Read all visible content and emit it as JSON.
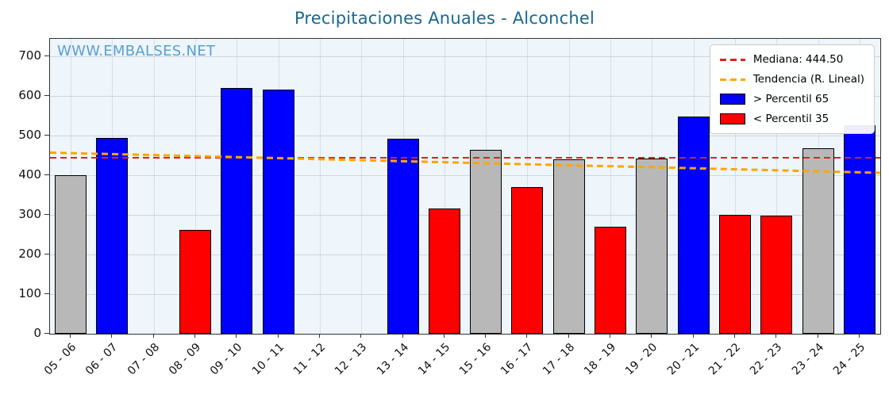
{
  "title": "Precipitaciones Anuales - Alconchel",
  "watermark": "WWW.EMBALSES.NET",
  "legend": {
    "median_label": "Mediana: 444.50",
    "trend_label": "Tendencia (R. Lineal)",
    "high_label": "> Percentil 65",
    "low_label": "< Percentil 35"
  },
  "colors": {
    "high": "#0000ff",
    "low": "#ff0000",
    "normal": "#b8b8b8",
    "median_line": "#dd2222",
    "trend_line": "#ffa500",
    "title": "#186890",
    "watermark": "#4f9bd0",
    "plot_bg": "#eef5fb"
  },
  "chart_data": {
    "type": "bar",
    "title": "Precipitaciones Anuales - Alconchel",
    "categories": [
      "05 - 06",
      "06 - 07",
      "07 - 08",
      "08 - 09",
      "09 - 10",
      "10 - 11",
      "11 - 12",
      "12 - 13",
      "13 - 14",
      "14 - 15",
      "15 - 16",
      "16 - 17",
      "17 - 18",
      "18 - 19",
      "19 - 20",
      "20 - 21",
      "21 - 22",
      "22 - 23",
      "23 - 24",
      "24 - 25"
    ],
    "values": [
      400,
      495,
      null,
      262,
      621,
      616,
      null,
      null,
      492,
      317,
      464,
      371,
      440,
      270,
      443,
      548,
      301,
      298,
      469,
      526
    ],
    "bar_classes": [
      "normal",
      "high",
      "none",
      "low",
      "high",
      "high",
      "none",
      "none",
      "high",
      "low",
      "normal",
      "low",
      "normal",
      "low",
      "normal",
      "high",
      "low",
      "low",
      "normal",
      "high"
    ],
    "median": 444.5,
    "trend": {
      "start": 458,
      "end": 407
    },
    "ylim": [
      0,
      744
    ],
    "yticks": [
      0,
      100,
      200,
      300,
      400,
      500,
      600,
      700
    ],
    "xlabel": "",
    "ylabel": "",
    "grid": true,
    "legend_position": "upper right"
  }
}
